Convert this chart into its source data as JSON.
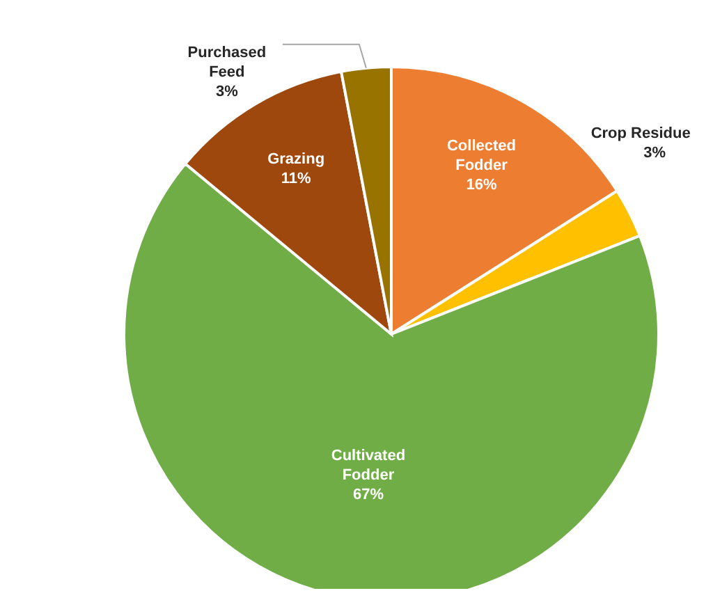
{
  "chart_data": {
    "type": "pie",
    "categories": [
      "Collected Fodder",
      "Crop Residue",
      "Cultivated Fodder",
      "Grazing",
      "Purchased Feed"
    ],
    "values": [
      16,
      3,
      67,
      11,
      3
    ],
    "colors": [
      "#ed7d31",
      "#ffc000",
      "#70ad47",
      "#9e480e",
      "#997300"
    ],
    "value_labels": [
      "16%",
      "3%",
      "67%",
      "11%",
      "3%"
    ]
  }
}
